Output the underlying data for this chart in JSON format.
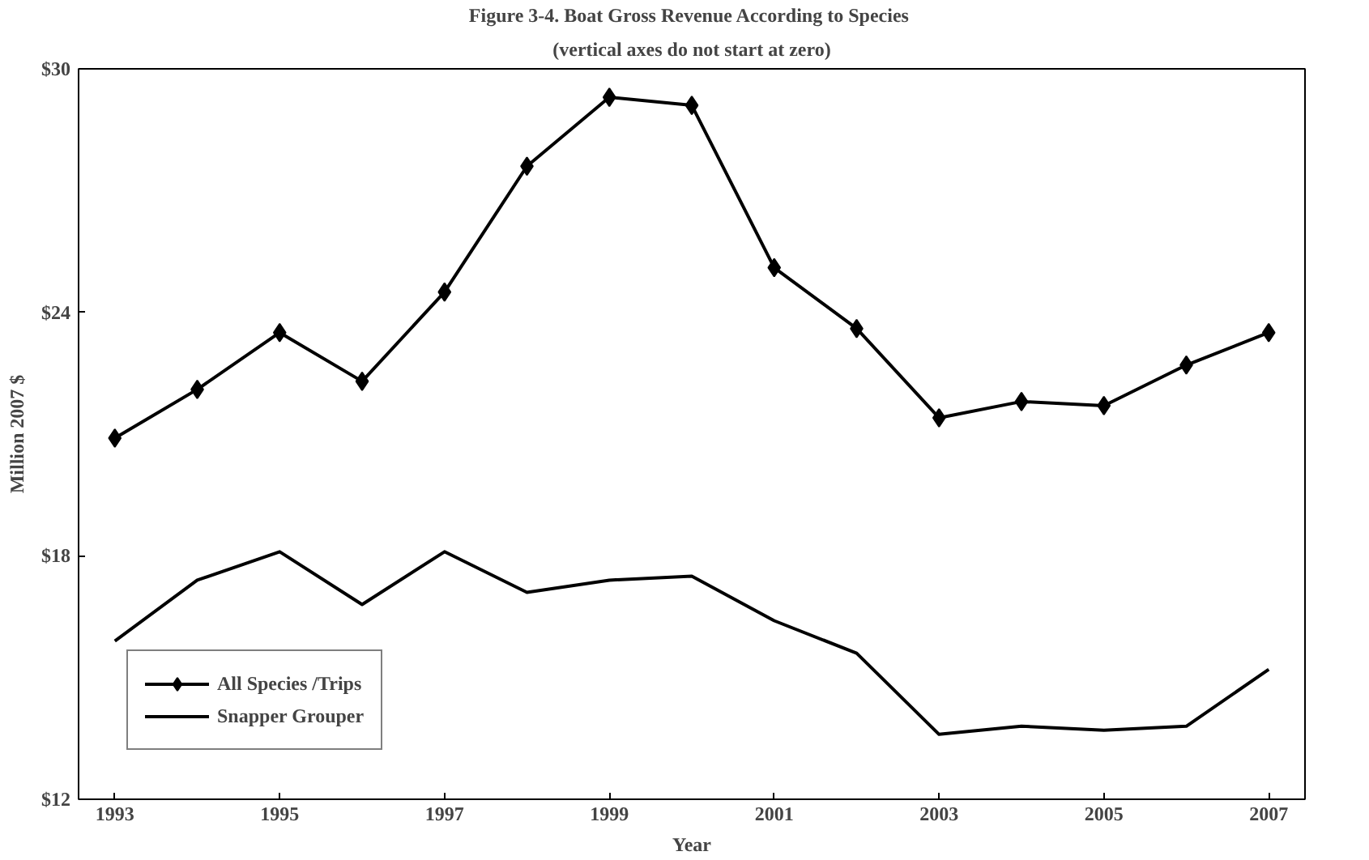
{
  "chart_data": {
    "type": "line",
    "title": "Figure 3-4.  Boat Gross Revenue According to Species",
    "subtitle": "(vertical axes do not start at zero)",
    "xlabel": "Year",
    "ylabel": "Million 2007 $",
    "x": [
      1993,
      1994,
      1995,
      1996,
      1997,
      1998,
      1999,
      2000,
      2001,
      2002,
      2003,
      2004,
      2005,
      2006,
      2007
    ],
    "series": [
      {
        "name": "All Species /Trips",
        "color": "#000000",
        "marker": "diamond",
        "values": [
          20.9,
          22.1,
          23.5,
          22.3,
          24.5,
          27.6,
          29.3,
          29.1,
          25.1,
          23.6,
          21.4,
          21.8,
          21.7,
          22.7,
          23.5
        ]
      },
      {
        "name": "Snapper Grouper",
        "color": "#000000",
        "marker": "none",
        "values": [
          15.9,
          17.4,
          18.1,
          16.8,
          18.1,
          17.1,
          17.4,
          17.5,
          16.4,
          15.6,
          13.6,
          13.8,
          13.7,
          13.8,
          15.2
        ]
      }
    ],
    "xlim": [
      1992.56,
      2007.44
    ],
    "ylim": [
      12,
      30
    ],
    "xticks": [
      1993,
      1995,
      1997,
      1999,
      2001,
      2003,
      2005,
      2007
    ],
    "yticks": [
      {
        "value": 12,
        "label": "$12"
      },
      {
        "value": 18,
        "label": "$18"
      },
      {
        "value": 24,
        "label": "$24"
      },
      {
        "value": 30,
        "label": "$30"
      }
    ],
    "grid": false,
    "legend": "bottom left",
    "line_style": "solid"
  }
}
